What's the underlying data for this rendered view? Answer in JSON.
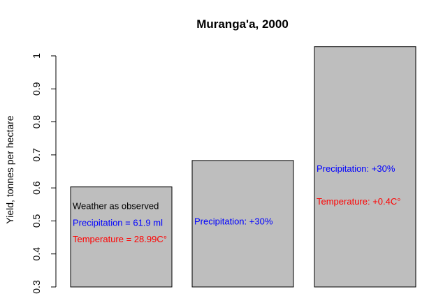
{
  "chart_data": {
    "type": "bar",
    "title": "Muranga'a, 2000",
    "xlabel": "",
    "ylabel": "Yield, tonnes per hectare",
    "ylim": [
      0.3,
      1.0
    ],
    "yticks": [
      0.3,
      0.4,
      0.5,
      0.6,
      0.7,
      0.8,
      0.9,
      1.0
    ],
    "ytick_labels": [
      "0.3",
      "0.4",
      "0.5",
      "0.6",
      "0.7",
      "0.8",
      "0.9",
      "1"
    ],
    "values": [
      0.603,
      0.683,
      1.028
    ],
    "bar_color": "#bebebe",
    "bar_labels": [
      [
        {
          "text": "Weather as observed",
          "color": "#000000",
          "y": 0.546
        },
        {
          "text": "Precipitation = 61.9 ml",
          "color": "#0000ff",
          "y": 0.496
        },
        {
          "text": "Temperature = 28.99C°",
          "color": "#ff0000",
          "y": 0.446
        }
      ],
      [
        {
          "text": "Precipitation: +30%",
          "color": "#0000ff",
          "y": 0.5
        }
      ],
      [
        {
          "text": "Precipitation: +30%",
          "color": "#0000ff",
          "y": 0.659
        },
        {
          "text": "Temperature: +0.4C°",
          "color": "#ff0000",
          "y": 0.56
        }
      ]
    ]
  }
}
